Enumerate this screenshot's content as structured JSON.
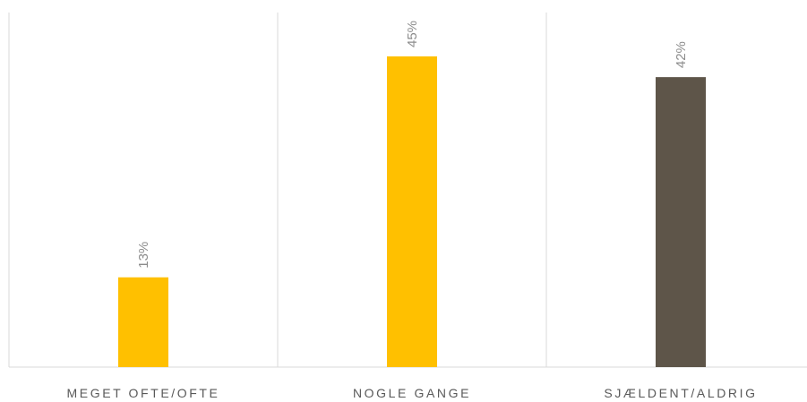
{
  "chart_data": {
    "type": "bar",
    "categories": [
      "MEGET OFTE/OFTE",
      "NOGLE GANGE",
      "SJÆLDENT/ALDRIG"
    ],
    "values": [
      13,
      45,
      42
    ],
    "value_labels": [
      "13%",
      "45%",
      "42%"
    ],
    "unit": "%",
    "ylim": [
      0,
      45
    ],
    "colors": [
      "#FFC000",
      "#FFC000",
      "#5E5549"
    ],
    "grid": false,
    "category_separators": true,
    "value_label_orientation": "vertical"
  }
}
